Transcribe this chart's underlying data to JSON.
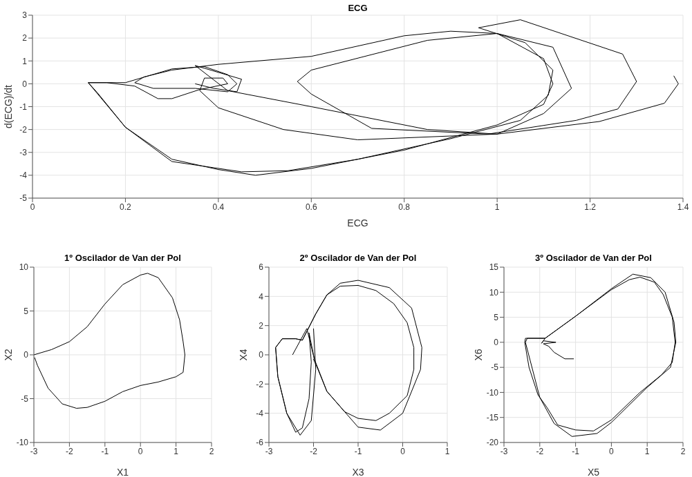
{
  "chart_data": [
    {
      "type": "line",
      "title": "ECG",
      "xlabel": "ECG",
      "ylabel": "d(ECG)/dt",
      "xlim": [
        0,
        1.4
      ],
      "ylim": [
        -5,
        3
      ],
      "xticks": [
        0,
        0.2,
        0.4,
        0.6,
        0.8,
        1,
        1.2,
        1.4
      ],
      "yticks": [
        -5,
        -4,
        -3,
        -2,
        -1,
        0,
        1,
        2,
        3
      ],
      "grid": true,
      "series": [
        {
          "color": "#000000",
          "x": [
            1.38,
            1.39,
            1.36,
            1.22,
            1.0,
            0.7,
            0.54,
            0.4,
            0.36,
            0.37,
            0.41,
            0.42,
            0.36,
            0.3,
            0.27,
            0.22,
            0.16,
            0.12,
            0.14,
            0.2,
            0.3,
            0.4,
            0.48,
            0.6,
            0.8,
            1.0,
            1.1,
            1.12,
            1.1,
            1.0,
            0.9,
            0.8,
            0.6,
            0.4,
            0.3,
            0.24,
            0.22,
            0.26,
            0.35,
            0.42,
            0.44,
            0.42,
            0.37,
            0.3,
            0.25,
            0.2,
            0.12,
            0.2,
            0.3,
            0.45,
            0.55,
            0.7,
            0.9,
            1.05,
            1.11,
            1.12,
            1.06,
            0.96,
            1.05,
            1.27,
            1.3,
            1.26,
            1.17,
            0.98,
            0.73,
            0.6,
            0.57,
            0.6,
            0.85,
            1.0,
            1.12,
            1.16,
            1.1,
            1.0,
            0.85,
            0.6,
            0.42,
            0.35,
            0.45,
            0.44,
            0.39,
            0.35
          ],
          "values": [
            0.35,
            0,
            -0.85,
            -1.65,
            -2.2,
            -2.45,
            -2.0,
            -1.05,
            -0.3,
            0.25,
            0.25,
            0.0,
            -0.25,
            -0.65,
            -0.65,
            -0.1,
            0.05,
            0.05,
            -0.4,
            -1.9,
            -3.3,
            -3.75,
            -4.0,
            -3.7,
            -2.9,
            -1.8,
            -0.9,
            0,
            1.1,
            2.2,
            2.3,
            2.1,
            1.2,
            0.85,
            0.6,
            0.3,
            0.05,
            -0.2,
            -0.2,
            -0.35,
            0.0,
            0.4,
            0.75,
            0.65,
            0.35,
            0.05,
            0.05,
            -1.9,
            -3.4,
            -3.85,
            -3.8,
            -3.3,
            -2.4,
            -1.6,
            -0.5,
            0.6,
            1.8,
            2.45,
            2.8,
            1.3,
            0.1,
            -1.1,
            -1.6,
            -2.2,
            -1.95,
            -0.45,
            0.1,
            0.6,
            1.9,
            2.2,
            1.6,
            -0.2,
            -1.3,
            -2.2,
            -2.0,
            -1.0,
            -0.3,
            0.8,
            0.2,
            -0.35,
            -0.2,
            0.0
          ]
        }
      ]
    },
    {
      "type": "line",
      "title": "1º Oscilador de Van der Pol",
      "xlabel": "X1",
      "ylabel": "X2",
      "xlim": [
        -3,
        2
      ],
      "ylim": [
        -10,
        10
      ],
      "xticks": [
        -3,
        -2,
        -1,
        0,
        1,
        2
      ],
      "yticks": [
        -10,
        -5,
        0,
        5,
        10
      ],
      "grid": true,
      "series": [
        {
          "color": "#000000",
          "x": [
            -3,
            -2.5,
            -2,
            -1.5,
            -1,
            -0.5,
            0,
            0.2,
            0.5,
            0.9,
            1.1,
            1.2,
            1.25,
            1.2,
            1.0,
            0.5,
            0,
            -0.5,
            -1,
            -1.5,
            -1.8,
            -2.2,
            -2.6,
            -2.9,
            -2.98
          ],
          "values": [
            0,
            0.6,
            1.5,
            3.2,
            5.8,
            8.0,
            9.1,
            9.3,
            8.8,
            6.5,
            4,
            1.5,
            0,
            -2.0,
            -2.5,
            -3.1,
            -3.5,
            -4.2,
            -5.3,
            -6.0,
            -6.1,
            -5.6,
            -3.8,
            -1.2,
            -0.3
          ]
        }
      ]
    },
    {
      "type": "line",
      "title": "2º Oscilador de Van der Pol",
      "xlabel": "X3",
      "ylabel": "X4",
      "xlim": [
        -3,
        1
      ],
      "ylim": [
        -6,
        6
      ],
      "xticks": [
        -3,
        -2,
        -1,
        0,
        1
      ],
      "yticks": [
        -6,
        -4,
        -2,
        0,
        2,
        4,
        6
      ],
      "grid": true,
      "series": [
        {
          "color": "#000000",
          "x": [
            -2.47,
            -2.15,
            -1.98,
            -2.0,
            -1.9,
            -1.7,
            -1.3,
            -1.0,
            -0.5,
            0,
            0.4,
            0.43,
            0.2,
            -0.3,
            -1.0,
            -1.4,
            -1.7,
            -1.95,
            -2.15,
            -2.25,
            -2.4,
            -2.7,
            -2.85,
            -2.8,
            -2.6,
            -2.4,
            -2.25,
            -2.1,
            -2.05,
            -2.1,
            -1.98,
            -1.7,
            -1.3,
            -1.0,
            -0.6,
            -0.3,
            0.1,
            0.25,
            0.25,
            0.1,
            -0.2,
            -0.6,
            -1.0,
            -1.4,
            -1.7,
            -1.95,
            -2.15,
            -2.25,
            -2.4,
            -2.7,
            -2.85,
            -2.8,
            -2.6,
            -2.3,
            -2.05,
            -1.95,
            -2.0
          ],
          "values": [
            0,
            1.8,
            -0.3,
            -0.3,
            -1.0,
            -2.5,
            -3.9,
            -4.95,
            -5.15,
            -4.0,
            -1.0,
            0.5,
            3.2,
            4.6,
            5.1,
            4.9,
            4.1,
            2.8,
            1.6,
            1.0,
            1.1,
            1.1,
            0.5,
            -1.5,
            -4.0,
            -5.3,
            -5.0,
            -3.0,
            -0.5,
            1.5,
            -0.3,
            -2.5,
            -3.9,
            -4.35,
            -4.5,
            -4.0,
            -2.8,
            -1.0,
            0.5,
            2.2,
            3.5,
            4.4,
            4.75,
            4.7,
            4.1,
            2.8,
            1.6,
            1.0,
            1.1,
            1.1,
            0.5,
            -1.5,
            -4.0,
            -5.5,
            -4.5,
            -1.0,
            1.8
          ]
        }
      ]
    },
    {
      "type": "line",
      "title": "3º Oscilador de Van der Pol",
      "xlabel": "X5",
      "ylabel": "X6",
      "xlim": [
        -3,
        2
      ],
      "ylim": [
        -20,
        15
      ],
      "xticks": [
        -3,
        -2,
        -1,
        0,
        1,
        2
      ],
      "yticks": [
        -20,
        -15,
        -10,
        -5,
        0,
        5,
        10,
        15
      ],
      "grid": true,
      "series": [
        {
          "color": "#000000",
          "x": [
            -1.05,
            -1.3,
            -1.6,
            -1.75,
            -1.9,
            -1.55,
            -1.9,
            -1.95,
            -1.85,
            -1,
            0,
            0.5,
            0.8,
            1.2,
            1.45,
            1.7,
            1.78,
            1.7,
            1.4,
            0.8,
            0,
            -0.5,
            -1,
            -1.5,
            -1.8,
            -2.05,
            -2.3,
            -2.42,
            -2.4,
            -1.85,
            -1,
            0,
            0.6,
            1.1,
            1.5,
            1.75,
            1.8,
            1.65,
            1.0,
            0,
            -0.4,
            -1.1,
            -1.6,
            -2,
            -2.4,
            -2.35,
            -1.85
          ],
          "values": [
            -3.3,
            -3.3,
            -2,
            -0.8,
            -0.3,
            0,
            0.3,
            -0.2,
            0.8,
            5.2,
            10.5,
            12.5,
            13,
            12,
            9.5,
            5,
            0,
            -4,
            -6.5,
            -10,
            -15.5,
            -17.7,
            -17.5,
            -16.5,
            -13,
            -10.5,
            -5,
            0,
            0.8,
            0.8,
            5.2,
            10.7,
            13.6,
            12.9,
            10,
            4,
            0,
            -5,
            -9,
            -16,
            -18.2,
            -18.8,
            -16.2,
            -11,
            0,
            0.8,
            0.8
          ]
        }
      ]
    }
  ]
}
